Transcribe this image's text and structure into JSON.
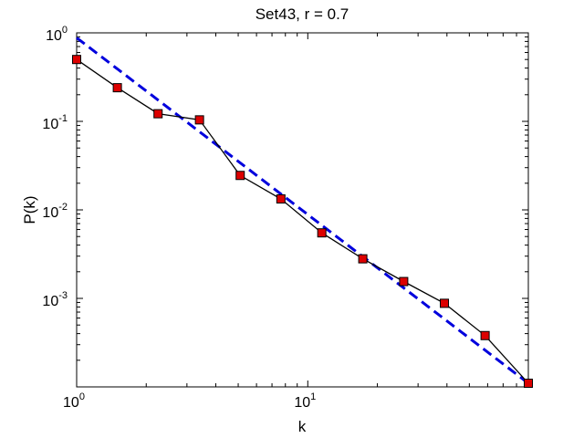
{
  "chart_data": {
    "type": "line",
    "title": "Set43, r = 0.7",
    "xlabel": "k",
    "ylabel": "P(k)",
    "xscale": "log",
    "yscale": "log",
    "xlim": [
      1,
      90
    ],
    "ylim": [
      0.0001,
      1
    ],
    "x_ticks": [
      {
        "value": 1,
        "base": "10",
        "exp": "0"
      },
      {
        "value": 10,
        "base": "10",
        "exp": "1"
      }
    ],
    "y_ticks": [
      {
        "value": 1,
        "base": "10",
        "exp": "0"
      },
      {
        "value": 0.1,
        "base": "10",
        "exp": "-1"
      },
      {
        "value": 0.01,
        "base": "10",
        "exp": "-2"
      },
      {
        "value": 0.001,
        "base": "10",
        "exp": "-3"
      }
    ],
    "grid": false,
    "series": [
      {
        "style": "solid-line-with-square-markers",
        "line_color": "#000000",
        "marker_color": "#dd0000",
        "x": [
          1,
          1.5,
          2.25,
          3.4,
          5.1,
          7.65,
          11.5,
          17.3,
          26,
          39,
          58.5,
          90
        ],
        "y": [
          0.5,
          0.24,
          0.122,
          0.104,
          0.0245,
          0.0133,
          0.0055,
          0.0028,
          0.00155,
          0.00088,
          0.00038,
          0.00011
        ]
      },
      {
        "style": "dashed-fit-line",
        "line_color": "#0000dd",
        "x": [
          1,
          90
        ],
        "y": [
          0.88,
          0.00011
        ]
      }
    ]
  }
}
